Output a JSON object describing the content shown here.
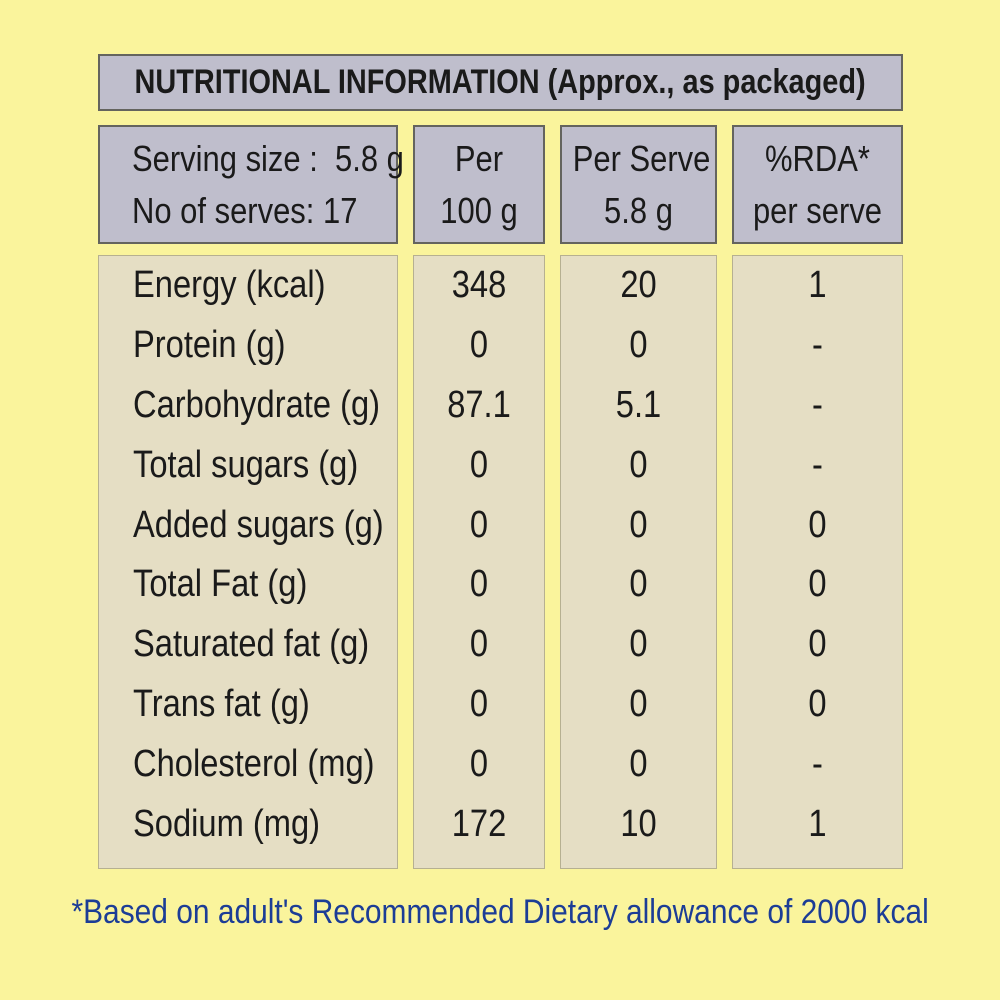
{
  "title": "NUTRITIONAL INFORMATION (Approx., as packaged)",
  "table": {
    "header": {
      "serving_size": "Serving size :  5.8 g",
      "no_of_serves": "No of serves: 17",
      "per100_line1": "Per",
      "per100_line2": "100 g",
      "perserve_line1": "Per Serve",
      "perserve_line2": "5.8 g",
      "rda_line1": "%RDA*",
      "rda_line2": "per serve"
    },
    "rows": [
      {
        "label": "Energy (kcal)",
        "per_100g": "348",
        "per_serve": "20",
        "rda_per_serve": "1"
      },
      {
        "label": "Protein (g)",
        "per_100g": "0",
        "per_serve": "0",
        "rda_per_serve": "-"
      },
      {
        "label": "Carbohydrate (g)",
        "per_100g": "87.1",
        "per_serve": "5.1",
        "rda_per_serve": "-"
      },
      {
        "label": "Total sugars (g)",
        "per_100g": "0",
        "per_serve": "0",
        "rda_per_serve": "-"
      },
      {
        "label": "Added sugars (g)",
        "per_100g": "0",
        "per_serve": "0",
        "rda_per_serve": "0"
      },
      {
        "label": "Total Fat (g)",
        "per_100g": "0",
        "per_serve": "0",
        "rda_per_serve": "0"
      },
      {
        "label": "Saturated fat (g)",
        "per_100g": "0",
        "per_serve": "0",
        "rda_per_serve": "0"
      },
      {
        "label": "Trans fat (g)",
        "per_100g": "0",
        "per_serve": "0",
        "rda_per_serve": "0"
      },
      {
        "label": "Cholesterol (mg)",
        "per_100g": "0",
        "per_serve": "0",
        "rda_per_serve": "-"
      },
      {
        "label": "Sodium (mg)",
        "per_100g": "172",
        "per_serve": "10",
        "rda_per_serve": "1"
      }
    ]
  },
  "footnote": "*Based on adult's Recommended Dietary allowance of 2000 kcal",
  "colors": {
    "page_background": "#FAF49C",
    "header_cell_fill": "#BFBECC",
    "body_cell_fill": "#E5DEC4",
    "cell_border": "#46453A",
    "text": "#1A1A1A",
    "footnote_text": "#1C3D96"
  }
}
